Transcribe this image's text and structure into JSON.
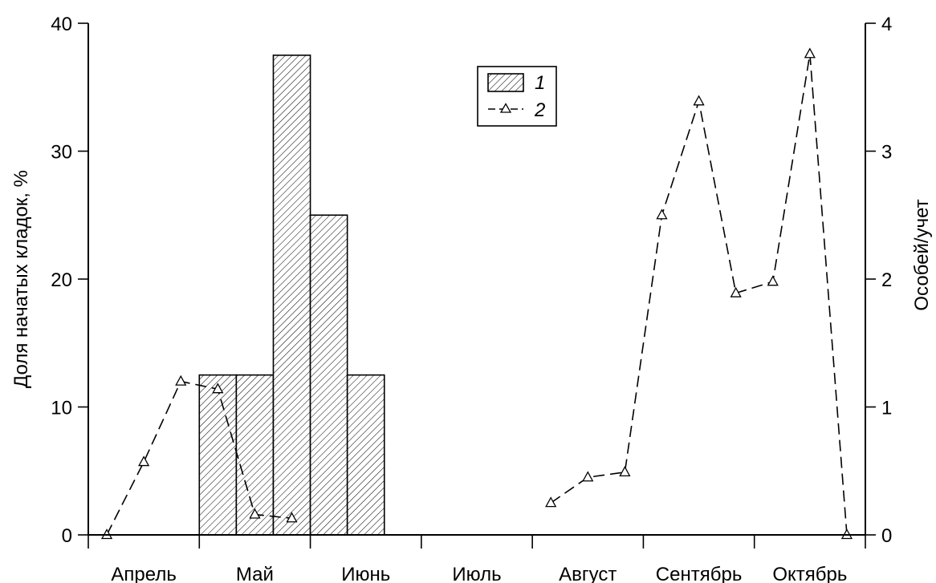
{
  "chart_data": {
    "type": "bar+line",
    "title": "",
    "ylabel_left": "Доля начатых кладок, %",
    "ylabel_right": "Особей/учет",
    "ylim_left": [
      0,
      40
    ],
    "ylim_right": [
      0,
      4
    ],
    "yticks_left": [
      "0",
      "10",
      "20",
      "30",
      "40"
    ],
    "yticks_right": [
      "0",
      "1",
      "2",
      "3",
      "4"
    ],
    "x_domain": [
      0,
      21
    ],
    "months": [
      {
        "label": "Апрель",
        "center": 1.5
      },
      {
        "label": "Май",
        "center": 4.5
      },
      {
        "label": "Июнь",
        "center": 7.5
      },
      {
        "label": "Июль",
        "center": 10.5
      },
      {
        "label": "Август",
        "center": 13.5
      },
      {
        "label": "Сентябрь",
        "center": 16.5
      },
      {
        "label": "Октябрь",
        "center": 19.5
      }
    ],
    "bars": {
      "name": "1",
      "x_start": [
        3,
        4,
        5,
        6,
        7
      ],
      "x_end": [
        4,
        5,
        6,
        7,
        8
      ],
      "values": [
        12.5,
        12.5,
        37.5,
        25,
        12.5
      ]
    },
    "line": {
      "name": "2",
      "segments": [
        {
          "x": [
            0.5,
            1.5,
            2.5,
            3.5,
            4.5,
            5.5
          ],
          "y": [
            0,
            0.57,
            1.2,
            1.14,
            0.16,
            0.13
          ]
        },
        {
          "x": [
            12.5,
            13.5,
            14.5,
            15.5,
            16.5,
            17.5,
            18.5,
            19.5,
            20.5
          ],
          "y": [
            0.25,
            0.45,
            0.49,
            2.5,
            3.39,
            1.89,
            1.98,
            3.76,
            0
          ]
        }
      ]
    },
    "legend": {
      "position": "top-center",
      "entries": [
        "1",
        "2"
      ]
    }
  }
}
